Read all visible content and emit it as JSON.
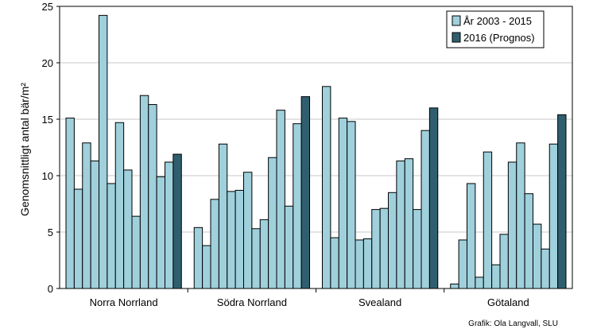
{
  "chart_data": {
    "type": "bar",
    "ylabel": "Genomsnittligt antal bär/m²",
    "ylim": [
      0,
      25
    ],
    "yticks": [
      0,
      5,
      10,
      15,
      20,
      25
    ],
    "grid": true,
    "legend_position": "top-right",
    "categories": [
      "Norra Norrland",
      "Södra Norrland",
      "Svealand",
      "Götaland"
    ],
    "series": [
      {
        "name": "År 2003 - 2015",
        "color": "#9fd0dc",
        "values": [
          [
            15.1,
            8.8,
            12.9,
            11.3,
            24.2,
            9.3,
            14.7,
            10.5,
            6.4,
            17.1,
            16.3,
            9.9,
            11.2
          ],
          [
            5.4,
            3.8,
            7.9,
            12.8,
            8.6,
            8.7,
            10.3,
            5.3,
            6.1,
            11.6,
            15.8,
            7.3,
            14.6
          ],
          [
            17.9,
            4.5,
            15.1,
            14.8,
            4.3,
            4.4,
            7.0,
            7.1,
            8.5,
            11.3,
            11.5,
            7.0,
            14.0
          ],
          [
            0.4,
            4.3,
            9.3,
            1.0,
            12.1,
            2.1,
            4.8,
            11.2,
            12.9,
            8.4,
            5.7,
            3.5,
            12.8
          ]
        ]
      },
      {
        "name": "2016 (Prognos)",
        "color": "#2f5f6f",
        "values": [
          11.9,
          17.0,
          16.0,
          15.4
        ]
      }
    ]
  },
  "credit": "Grafik: Ola Langvall, SLU"
}
